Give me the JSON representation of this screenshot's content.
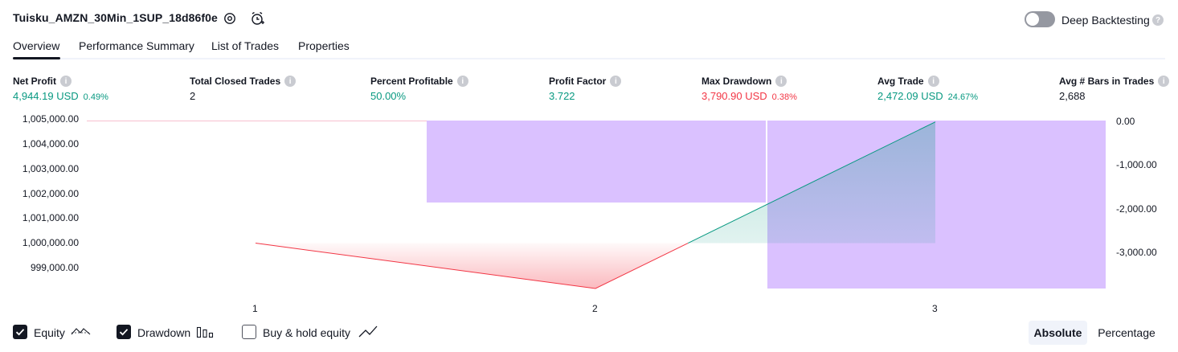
{
  "header": {
    "title": "Tuisku_AMZN_30Min_1SUP_18d86f0e",
    "icons": [
      "settings-icon",
      "add-alert-icon"
    ],
    "deep_backtesting_label": "Deep Backtesting",
    "deep_backtesting_enabled": false
  },
  "tabs": [
    {
      "label": "Overview",
      "active": true
    },
    {
      "label": "Performance Summary",
      "active": false
    },
    {
      "label": "List of Trades",
      "active": false
    },
    {
      "label": "Properties",
      "active": false
    }
  ],
  "metrics": [
    {
      "label": "Net Profit",
      "value": "4,944.19 USD",
      "pct": "0.49%",
      "color": "#089981"
    },
    {
      "label": "Total Closed Trades",
      "value": "2",
      "pct": "",
      "color": "#131722"
    },
    {
      "label": "Percent Profitable",
      "value": "50.00%",
      "pct": "",
      "color": "#089981"
    },
    {
      "label": "Profit Factor",
      "value": "3.722",
      "pct": "",
      "color": "#089981"
    },
    {
      "label": "Max Drawdown",
      "value": "3,790.90 USD",
      "pct": "0.38%",
      "color": "#f23645"
    },
    {
      "label": "Avg Trade",
      "value": "2,472.09 USD",
      "pct": "24.67%",
      "color": "#089981"
    },
    {
      "label": "Avg # Bars in Trades",
      "value": "2,688",
      "pct": "",
      "color": "#131722"
    }
  ],
  "chart_data": {
    "type": "area",
    "x": [
      1,
      2,
      3
    ],
    "x_ticks": [
      "1",
      "2",
      "3"
    ],
    "y_left_ticks": [
      "1,005,000.00",
      "1,004,000.00",
      "1,003,000.00",
      "1,002,000.00",
      "1,001,000.00",
      "1,000,000.00",
      "999,000.00"
    ],
    "y_right_ticks": [
      "0.00",
      "-1,000.00",
      "-2,000.00",
      "-3,000.00"
    ],
    "ylim_left": [
      998150,
      1005000
    ],
    "ylim_right": [
      -3790.9,
      0
    ],
    "initial_capital": 1000000,
    "series": [
      {
        "name": "Equity",
        "axis": "left",
        "x": [
          1,
          2,
          3
        ],
        "values": [
          1000000,
          998150,
          1004944.19
        ]
      },
      {
        "name": "Drawdown",
        "axis": "right",
        "type": "bar",
        "x": [
          2,
          3
        ],
        "values": [
          -1850,
          -3790.9
        ]
      }
    ],
    "colors": {
      "loss": "#f23645",
      "gain": "#089981",
      "drawdown": "#c39bff",
      "baseline": "#f7c0d0"
    }
  },
  "legend": [
    {
      "label": "Equity",
      "checked": true,
      "icon": "equity-line-icon"
    },
    {
      "label": "Drawdown",
      "checked": true,
      "icon": "drawdown-bars-icon"
    },
    {
      "label": "Buy & hold equity",
      "checked": false,
      "icon": "buy-hold-line-icon"
    }
  ],
  "view_toggle": {
    "absolute": "Absolute",
    "percentage": "Percentage",
    "active": "absolute"
  }
}
